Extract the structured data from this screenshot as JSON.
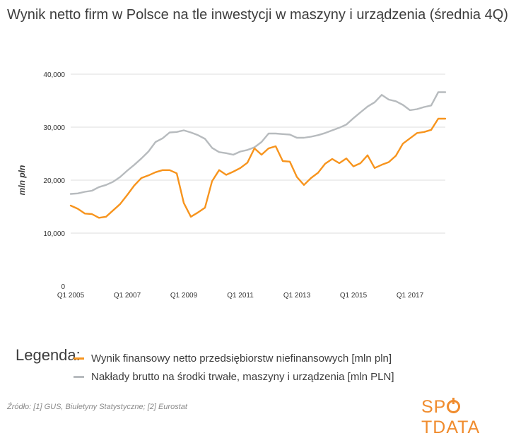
{
  "title": "Wynik netto firm w Polsce na tle inwestycji w maszyny i urządzenia (średnia 4Q)",
  "legend_title": "Legenda:",
  "source": "Źródło: [1] GUS, Biuletyny Statystyczne; [2] Eurostat",
  "logo": {
    "before": "SP",
    "after": "TDATA"
  },
  "colors": {
    "orange": "#f7941d",
    "gray": "#b7bbbe",
    "grid": "#dcdcdc",
    "axis_text": "#333333"
  },
  "chart_data": {
    "type": "line",
    "title": "Wynik netto firm w Polsce na tle inwestycji w maszyny i urządzenia (średnia 4Q)",
    "xlabel": "",
    "ylabel": "mln pln",
    "ylim": [
      0,
      40000
    ],
    "yticks": [
      0,
      10000,
      20000,
      30000,
      40000
    ],
    "ytick_labels": [
      "0",
      "10,000",
      "20,000",
      "30,000",
      "40,000"
    ],
    "xtick_labels": [
      "Q1 2005",
      "Q1 2007",
      "Q1 2009",
      "Q1 2011",
      "Q1 2013",
      "Q1 2015",
      "Q1 2017"
    ],
    "grid": true,
    "legend_position": "bottom",
    "categories": [
      "Q1 2005",
      "Q2 2005",
      "Q3 2005",
      "Q4 2005",
      "Q1 2006",
      "Q2 2006",
      "Q3 2006",
      "Q4 2006",
      "Q1 2007",
      "Q2 2007",
      "Q3 2007",
      "Q4 2007",
      "Q1 2008",
      "Q2 2008",
      "Q3 2008",
      "Q4 2008",
      "Q1 2009",
      "Q2 2009",
      "Q3 2009",
      "Q4 2009",
      "Q1 2010",
      "Q2 2010",
      "Q3 2010",
      "Q4 2010",
      "Q1 2011",
      "Q2 2011",
      "Q3 2011",
      "Q4 2011",
      "Q1 2012",
      "Q2 2012",
      "Q3 2012",
      "Q4 2012",
      "Q1 2013",
      "Q2 2013",
      "Q3 2013",
      "Q4 2013",
      "Q1 2014",
      "Q2 2014",
      "Q3 2014",
      "Q4 2014",
      "Q1 2015",
      "Q2 2015",
      "Q3 2015",
      "Q4 2015",
      "Q1 2016",
      "Q2 2016",
      "Q3 2016",
      "Q4 2016",
      "Q1 2017",
      "Q2 2017",
      "Q3 2017",
      "Q4 2017",
      "Q1 2018",
      "Q2 2018"
    ],
    "series": [
      {
        "name": "Wynik finansowy netto przedsiębiorstw niefinansowych [mln pln]",
        "color": "#f7941d",
        "values": [
          15200,
          14600,
          13700,
          13600,
          12900,
          13100,
          14300,
          15500,
          17200,
          19000,
          20400,
          20900,
          21500,
          21900,
          21900,
          21300,
          15700,
          13100,
          13900,
          14800,
          19800,
          21900,
          21000,
          21600,
          22300,
          23300,
          26000,
          24800,
          26000,
          26400,
          23600,
          23500,
          20600,
          19100,
          20400,
          21400,
          23100,
          24000,
          23200,
          24100,
          22600,
          23200,
          24700,
          22300,
          22900,
          23400,
          24600,
          26900,
          27900,
          28900,
          29100,
          29500,
          31600,
          31600
        ]
      },
      {
        "name": "Nakłady brutto na środki trwałe, maszyny i urządzenia [mln PLN]",
        "color": "#b7bbbe",
        "values": [
          17400,
          17500,
          17800,
          18000,
          18700,
          19100,
          19700,
          20600,
          21800,
          22900,
          24100,
          25400,
          27200,
          27900,
          29000,
          29100,
          29400,
          29000,
          28500,
          27800,
          26100,
          25300,
          25100,
          24800,
          25400,
          25700,
          26200,
          27200,
          28800,
          28800,
          28700,
          28600,
          28000,
          28000,
          28200,
          28500,
          28900,
          29400,
          29900,
          30500,
          31700,
          32800,
          33900,
          34700,
          36100,
          35200,
          34900,
          34200,
          33200,
          33400,
          33800,
          34100,
          36600,
          36600
        ]
      }
    ]
  }
}
